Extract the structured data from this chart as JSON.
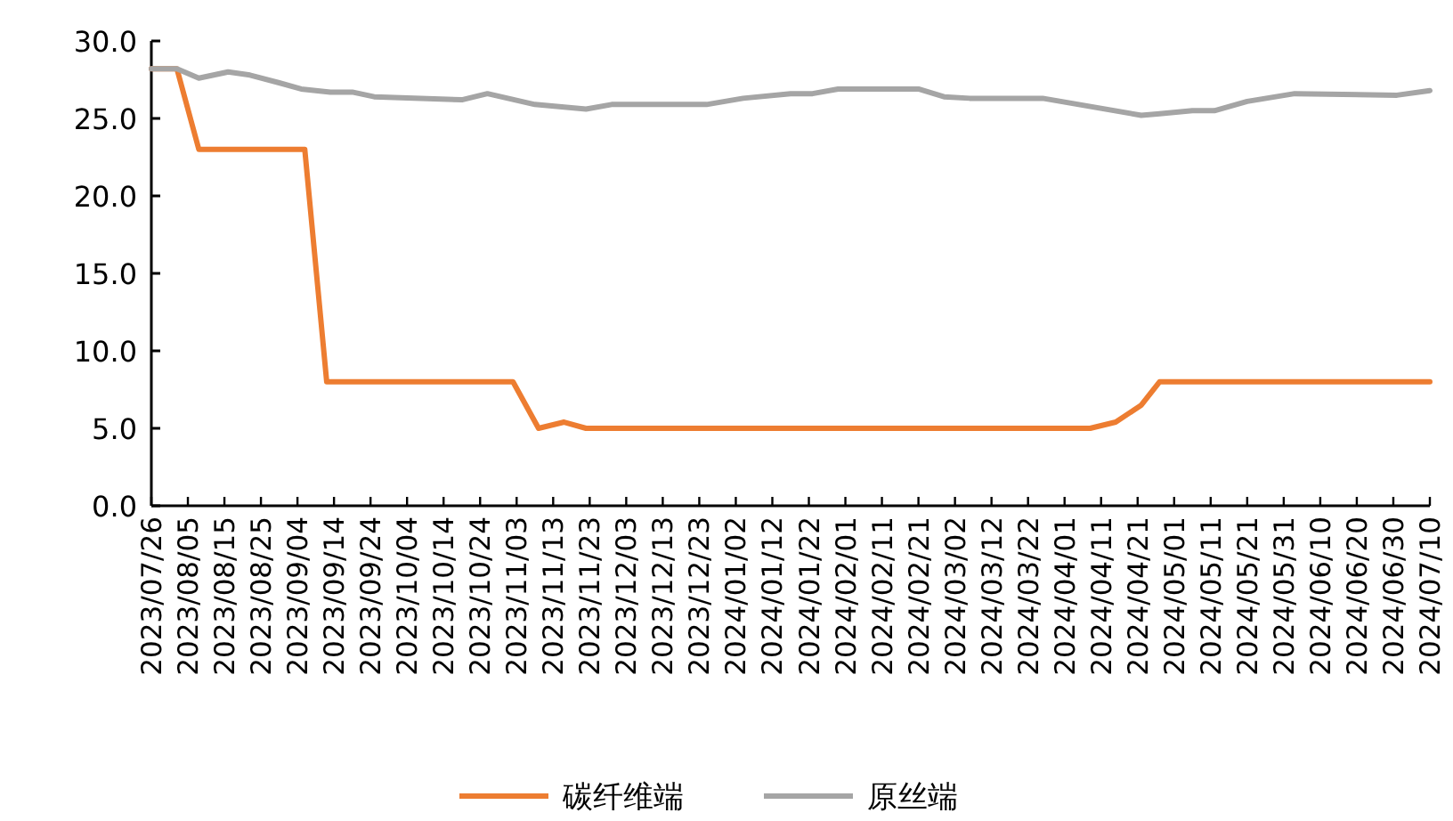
{
  "chart_data": {
    "type": "line",
    "xlim": [
      "2023-07-26",
      "2024-07-10"
    ],
    "xticks": [
      {
        "value": "2023-07-26",
        "label": "2023/07/26"
      },
      {
        "value": "2023-08-05",
        "label": "2023/08/05"
      },
      {
        "value": "2023-08-15",
        "label": "2023/08/15"
      },
      {
        "value": "2023-08-25",
        "label": "2023/08/25"
      },
      {
        "value": "2023-09-04",
        "label": "2023/09/04"
      },
      {
        "value": "2023-09-14",
        "label": "2023/09/14"
      },
      {
        "value": "2023-09-24",
        "label": "2023/09/24"
      },
      {
        "value": "2023-10-04",
        "label": "2023/10/04"
      },
      {
        "value": "2023-10-14",
        "label": "2023/10/14"
      },
      {
        "value": "2023-10-24",
        "label": "2023/10/24"
      },
      {
        "value": "2023-11-03",
        "label": "2023/11/03"
      },
      {
        "value": "2023-11-13",
        "label": "2023/11/13"
      },
      {
        "value": "2023-11-23",
        "label": "2023/11/23"
      },
      {
        "value": "2023-12-03",
        "label": "2023/12/03"
      },
      {
        "value": "2023-12-13",
        "label": "2023/12/13"
      },
      {
        "value": "2023-12-23",
        "label": "2023/12/23"
      },
      {
        "value": "2024-01-02",
        "label": "2024/01/02"
      },
      {
        "value": "2024-01-12",
        "label": "2024/01/12"
      },
      {
        "value": "2024-01-22",
        "label": "2024/01/22"
      },
      {
        "value": "2024-02-01",
        "label": "2024/02/01"
      },
      {
        "value": "2024-02-11",
        "label": "2024/02/11"
      },
      {
        "value": "2024-02-21",
        "label": "2024/02/21"
      },
      {
        "value": "2024-03-02",
        "label": "2024/03/02"
      },
      {
        "value": "2024-03-12",
        "label": "2024/03/12"
      },
      {
        "value": "2024-03-22",
        "label": "2024/03/22"
      },
      {
        "value": "2024-04-01",
        "label": "2024/04/01"
      },
      {
        "value": "2024-04-11",
        "label": "2024/04/11"
      },
      {
        "value": "2024-04-21",
        "label": "2024/04/21"
      },
      {
        "value": "2024-05-01",
        "label": "2024/05/01"
      },
      {
        "value": "2024-05-11",
        "label": "2024/05/11"
      },
      {
        "value": "2024-05-21",
        "label": "2024/05/21"
      },
      {
        "value": "2024-05-31",
        "label": "2024/05/31"
      },
      {
        "value": "2024-06-10",
        "label": "2024/06/10"
      },
      {
        "value": "2024-06-20",
        "label": "2024/06/20"
      },
      {
        "value": "2024-06-30",
        "label": "2024/06/30"
      },
      {
        "value": "2024-07-10",
        "label": "2024/07/10"
      }
    ],
    "ylim": [
      0,
      30
    ],
    "yticks": [
      {
        "value": 0,
        "label": "0.0"
      },
      {
        "value": 5,
        "label": "5.0"
      },
      {
        "value": 10,
        "label": "10.0"
      },
      {
        "value": 15,
        "label": "15.0"
      },
      {
        "value": 20,
        "label": "20.0"
      },
      {
        "value": 25,
        "label": "25.0"
      },
      {
        "value": 30,
        "label": "30.0"
      }
    ],
    "grid": false,
    "legend": "bottom",
    "marker": "none",
    "line_style": "solid",
    "series": [
      {
        "name": "碳纤维端",
        "color": "#ed7d31",
        "x": [
          "2023-07-26",
          "2023-08-02",
          "2023-08-08",
          "2023-09-06",
          "2023-09-12",
          "2023-11-02",
          "2023-11-09",
          "2023-11-16",
          "2023-11-22",
          "2024-04-08",
          "2024-04-15",
          "2024-04-22",
          "2024-04-27",
          "2024-07-10"
        ],
        "values": [
          28.2,
          28.2,
          23.0,
          23.0,
          8.0,
          8.0,
          5.0,
          5.4,
          5.0,
          5.0,
          5.4,
          6.5,
          8.0,
          8.0
        ]
      },
      {
        "name": "原丝端",
        "color": "#a5a5a5",
        "x": [
          "2023-07-26",
          "2023-08-02",
          "2023-08-08",
          "2023-08-16",
          "2023-08-22",
          "2023-08-30",
          "2023-09-05",
          "2023-09-13",
          "2023-09-19",
          "2023-09-25",
          "2023-10-19",
          "2023-10-26",
          "2023-11-08",
          "2023-11-22",
          "2023-11-29",
          "2023-12-25",
          "2024-01-04",
          "2024-01-17",
          "2024-01-23",
          "2024-01-30",
          "2024-02-21",
          "2024-02-28",
          "2024-03-06",
          "2024-03-26",
          "2024-04-22",
          "2024-04-27",
          "2024-05-06",
          "2024-05-12",
          "2024-05-21",
          "2024-06-03",
          "2024-07-01",
          "2024-07-10"
        ],
        "values": [
          28.2,
          28.2,
          27.6,
          28.0,
          27.8,
          27.3,
          26.9,
          26.7,
          26.7,
          26.4,
          26.2,
          26.6,
          25.9,
          25.6,
          25.9,
          25.9,
          26.3,
          26.6,
          26.6,
          26.9,
          26.9,
          26.4,
          26.3,
          26.3,
          25.2,
          25.3,
          25.5,
          25.5,
          26.1,
          26.6,
          26.5,
          26.8
        ]
      }
    ]
  }
}
